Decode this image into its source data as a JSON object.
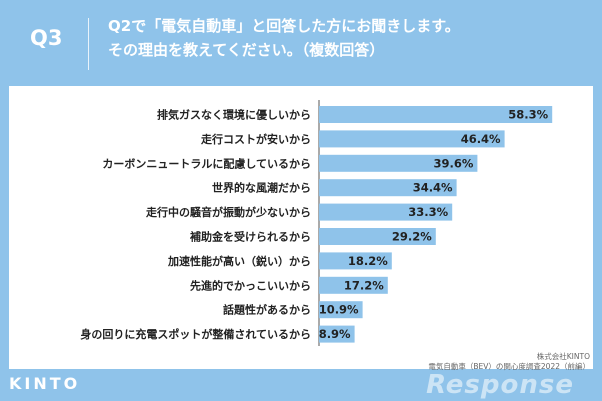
{
  "header": {
    "q_label": "Q3",
    "question_line1": "Q2で「電気自動車」と回答した方にお聞きします。",
    "question_line2": "その理由を教えてください。（複数回答）"
  },
  "footer": {
    "source_line1": "株式会社KINTO",
    "source_line2": "電気自動車（BEV）の関心度調査2022（前編）",
    "logo": "KINTO",
    "watermark": "Response"
  },
  "colors": {
    "bar": "#8fc3ea",
    "header_bg": "#8fc3ea",
    "panel_bg": "#ffffff",
    "text": "#222222"
  },
  "chart_data": {
    "type": "bar",
    "orientation": "horizontal",
    "categories": [
      "排気ガスなく環境に優しいから",
      "走行コストが安いから",
      "カーボンニュートラルに配慮しているから",
      "世界的な風潮だから",
      "走行中の騒音が振動が少ないから",
      "補助金を受けられるから",
      "加速性能が高い（鋭い）から",
      "先進的でかっこいいから",
      "話題性があるから",
      "身の回りに充電スポットが整備されているから"
    ],
    "values": [
      58.3,
      46.4,
      39.6,
      34.4,
      33.3,
      29.2,
      18.2,
      17.2,
      10.9,
      8.9
    ],
    "value_labels": [
      "58.3%",
      "46.4%",
      "39.6%",
      "34.4%",
      "33.3%",
      "29.2%",
      "18.2%",
      "17.2%",
      "10.9%",
      "8.9%"
    ],
    "xlim": [
      0,
      60
    ],
    "grid": false,
    "legend": false
  }
}
